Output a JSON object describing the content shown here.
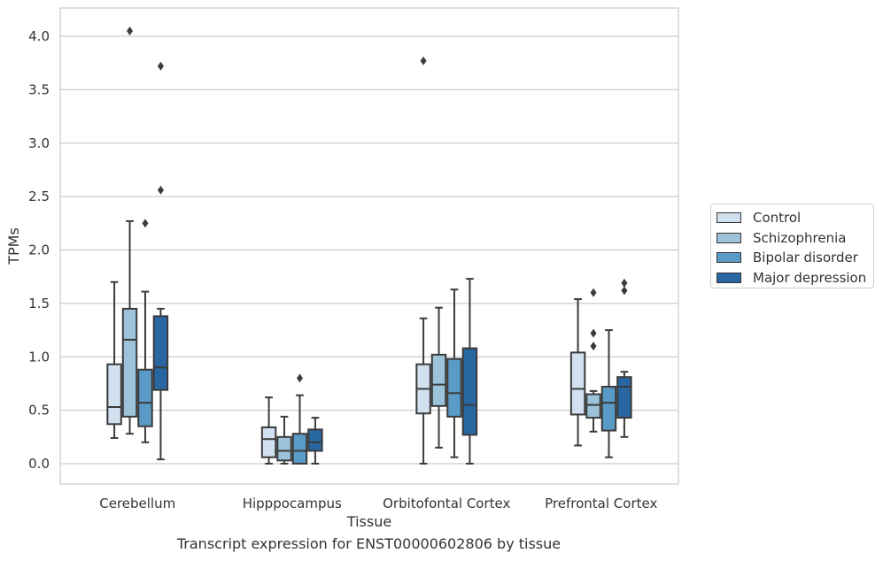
{
  "chart_data": {
    "type": "box",
    "xlabel": "Tissue",
    "ylabel": "TPMs",
    "caption": "Transcript expression for ENST00000602806 by tissue",
    "ylim": [
      -0.2,
      4.27
    ],
    "yticks": [
      0.0,
      0.5,
      1.0,
      1.5,
      2.0,
      2.5,
      3.0,
      3.5,
      4.0
    ],
    "ytick_labels": [
      "0.0",
      "0.5",
      "1.0",
      "1.5",
      "2.0",
      "2.5",
      "3.0",
      "3.5",
      "4.0"
    ],
    "categories": [
      "Cerebellum",
      "Hipppocampus",
      "Orbitofontal Cortex",
      "Prefrontal Cortex"
    ],
    "grid": "horizontal",
    "legend_position": "right",
    "series": [
      {
        "name": "Control",
        "color": "#d1e1f0",
        "boxes": [
          {
            "whislo": 0.24,
            "q1": 0.37,
            "med": 0.53,
            "q3": 0.93,
            "whishi": 1.7,
            "fliers": []
          },
          {
            "whislo": 0.0,
            "q1": 0.06,
            "med": 0.23,
            "q3": 0.34,
            "whishi": 0.62,
            "fliers": []
          },
          {
            "whislo": 0.0,
            "q1": 0.47,
            "med": 0.7,
            "q3": 0.93,
            "whishi": 1.36,
            "fliers": [
              3.77
            ]
          },
          {
            "whislo": 0.17,
            "q1": 0.46,
            "med": 0.7,
            "q3": 1.04,
            "whishi": 1.54,
            "fliers": []
          }
        ]
      },
      {
        "name": "Schizophrenia",
        "color": "#9cc3da",
        "boxes": [
          {
            "whislo": 0.28,
            "q1": 0.44,
            "med": 1.16,
            "q3": 1.45,
            "whishi": 2.27,
            "fliers": [
              4.05
            ]
          },
          {
            "whislo": 0.0,
            "q1": 0.03,
            "med": 0.12,
            "q3": 0.25,
            "whishi": 0.44,
            "fliers": []
          },
          {
            "whislo": 0.15,
            "q1": 0.54,
            "med": 0.74,
            "q3": 1.02,
            "whishi": 1.46,
            "fliers": []
          },
          {
            "whislo": 0.3,
            "q1": 0.43,
            "med": 0.55,
            "q3": 0.65,
            "whishi": 0.68,
            "fliers": [
              1.6,
              1.22,
              1.1
            ]
          }
        ]
      },
      {
        "name": "Bipolar disorder",
        "color": "#5a9ac6",
        "boxes": [
          {
            "whislo": 0.2,
            "q1": 0.35,
            "med": 0.57,
            "q3": 0.88,
            "whishi": 1.61,
            "fliers": [
              2.25
            ]
          },
          {
            "whislo": 0.0,
            "q1": 0.0,
            "med": 0.12,
            "q3": 0.28,
            "whishi": 0.64,
            "fliers": [
              0.8
            ]
          },
          {
            "whislo": 0.06,
            "q1": 0.44,
            "med": 0.66,
            "q3": 0.98,
            "whishi": 1.63,
            "fliers": []
          },
          {
            "whislo": 0.06,
            "q1": 0.31,
            "med": 0.57,
            "q3": 0.72,
            "whishi": 1.25,
            "fliers": []
          }
        ]
      },
      {
        "name": "Major depression",
        "color": "#2967a3",
        "boxes": [
          {
            "whislo": 0.04,
            "q1": 0.69,
            "med": 0.9,
            "q3": 1.38,
            "whishi": 1.45,
            "fliers": [
              3.72,
              2.56
            ]
          },
          {
            "whislo": 0.0,
            "q1": 0.12,
            "med": 0.2,
            "q3": 0.32,
            "whishi": 0.43,
            "fliers": []
          },
          {
            "whislo": 0.0,
            "q1": 0.27,
            "med": 0.55,
            "q3": 1.08,
            "whishi": 1.73,
            "fliers": []
          },
          {
            "whislo": 0.25,
            "q1": 0.43,
            "med": 0.72,
            "q3": 0.81,
            "whishi": 0.86,
            "fliers": [
              1.69,
              1.62
            ]
          }
        ]
      }
    ]
  }
}
